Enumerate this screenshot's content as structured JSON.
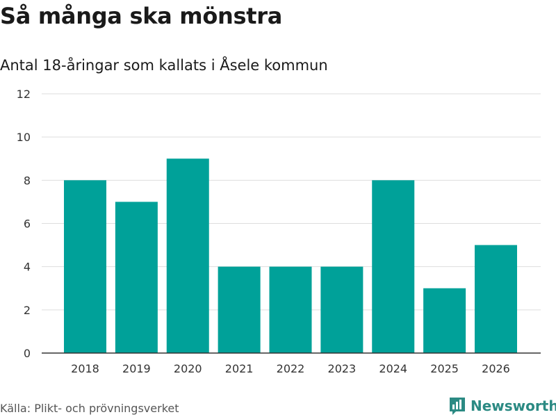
{
  "colors": {
    "bar": "#00a199",
    "grid": "#dddddd",
    "axis": "#333333",
    "brand": "#2b8a83"
  },
  "chart_data": {
    "type": "bar",
    "title": "Så många ska mönstra",
    "subtitle": "Antal 18-åringar som kallats i Åsele kommun",
    "categories": [
      "2018",
      "2019",
      "2020",
      "2021",
      "2022",
      "2023",
      "2024",
      "2025",
      "2026"
    ],
    "values": [
      8,
      7,
      9,
      4,
      4,
      4,
      8,
      3,
      5
    ],
    "xlabel": "",
    "ylabel": "",
    "ylim": [
      0,
      12
    ],
    "yticks": [
      0,
      2,
      4,
      6,
      8,
      10,
      12
    ],
    "grid": true
  },
  "footer": {
    "source": "Källa: Plikt- och prövningsverket",
    "brand": "Newsworthy",
    "brand_icon": "bar-chart-speech-icon"
  }
}
